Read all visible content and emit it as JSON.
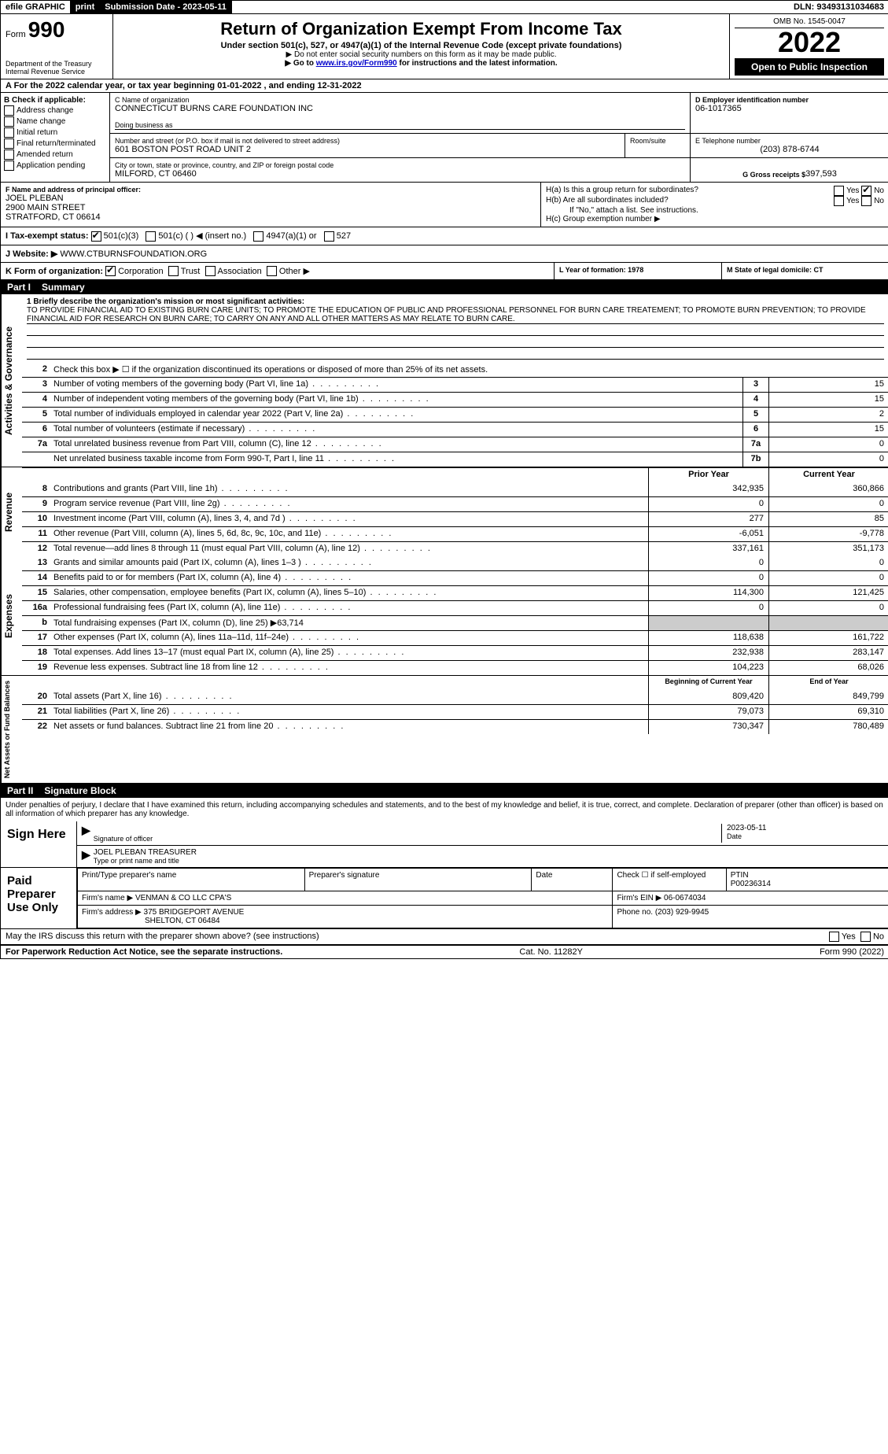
{
  "top_bar": {
    "efile_label": "efile GRAPHIC",
    "print_label": "print",
    "submission_label": "Submission Date - 2023-05-11",
    "dln_label": "DLN: 93493131034683"
  },
  "header": {
    "form_label": "Form",
    "form_number": "990",
    "dept1": "Department of the Treasury",
    "dept2": "Internal Revenue Service",
    "title": "Return of Organization Exempt From Income Tax",
    "subtitle": "Under section 501(c), 527, or 4947(a)(1) of the Internal Revenue Code (except private foundations)",
    "note1": "▶ Do not enter social security numbers on this form as it may be made public.",
    "note2_pre": "▶ Go to ",
    "note2_link": "www.irs.gov/Form990",
    "note2_post": " for instructions and the latest information.",
    "omb": "OMB No. 1545-0047",
    "year": "2022",
    "open_public": "Open to Public Inspection"
  },
  "row_a": {
    "text": "A For the 2022 calendar year, or tax year beginning 01-01-2022    , and ending 12-31-2022"
  },
  "col_b": {
    "heading": "B Check if applicable:",
    "items": [
      "Address change",
      "Name change",
      "Initial return",
      "Final return/terminated",
      "Amended return",
      "Application pending"
    ]
  },
  "block_c": {
    "label": "C Name of organization",
    "name": "CONNECTICUT BURNS CARE FOUNDATION INC",
    "dba_label": "Doing business as",
    "addr_label": "Number and street (or P.O. box if mail is not delivered to street address)",
    "room_label": "Room/suite",
    "addr": "601 BOSTON POST ROAD UNIT 2",
    "city_label": "City or town, state or province, country, and ZIP or foreign postal code",
    "city": "MILFORD, CT  06460"
  },
  "block_d": {
    "label": "D Employer identification number",
    "value": "06-1017365"
  },
  "block_e": {
    "label": "E Telephone number",
    "value": "(203) 878-6744"
  },
  "block_g": {
    "label": "G Gross receipts $",
    "value": "397,593"
  },
  "block_f": {
    "label": "F Name and address of principal officer:",
    "name": "JOEL PLEBAN",
    "addr1": "2900 MAIN STREET",
    "addr2": "STRATFORD, CT  06614"
  },
  "block_h": {
    "ha_label": "H(a)  Is this a group return for subordinates?",
    "hb_label": "H(b)  Are all subordinates included?",
    "hb_note": "If \"No,\" attach a list. See instructions.",
    "hc_label": "H(c)  Group exemption number ▶",
    "yes": "Yes",
    "no": "No"
  },
  "row_i": {
    "label": "I   Tax-exempt status:",
    "opts": [
      "501(c)(3)",
      "501(c) (   ) ◀ (insert no.)",
      "4947(a)(1) or",
      "527"
    ]
  },
  "row_j": {
    "label": "J   Website: ▶",
    "value": "WWW.CTBURNSFOUNDATION.ORG"
  },
  "row_k": {
    "label": "K Form of organization:",
    "opts": [
      "Corporation",
      "Trust",
      "Association",
      "Other ▶"
    ]
  },
  "row_l": {
    "label": "L Year of formation: 1978"
  },
  "row_m": {
    "label": "M State of legal domicile: CT"
  },
  "part1": {
    "label": "Part I",
    "title": "Summary"
  },
  "mission": {
    "line1_label": "1  Briefly describe the organization's mission or most significant activities:",
    "text": "TO PROVIDE FINANCIAL AID TO EXISTING BURN CARE UNITS; TO PROMOTE THE EDUCATION OF PUBLIC AND PROFESSIONAL PERSONNEL FOR BURN CARE TREATEMENT; TO PROMOTE BURN PREVENTION; TO PROVIDE FINANCIAL AID FOR RESEARCH ON BURN CARE; TO CARRY ON ANY AND ALL OTHER MATTERS AS MAY RELATE TO BURN CARE."
  },
  "governance": {
    "side": "Activities & Governance",
    "lines": [
      {
        "n": "2",
        "t": "Check this box ▶ ☐  if the organization discontinued its operations or disposed of more than 25% of its net assets."
      },
      {
        "n": "3",
        "t": "Number of voting members of the governing body (Part VI, line 1a)",
        "box": "3",
        "v": "15"
      },
      {
        "n": "4",
        "t": "Number of independent voting members of the governing body (Part VI, line 1b)",
        "box": "4",
        "v": "15"
      },
      {
        "n": "5",
        "t": "Total number of individuals employed in calendar year 2022 (Part V, line 2a)",
        "box": "5",
        "v": "2"
      },
      {
        "n": "6",
        "t": "Total number of volunteers (estimate if necessary)",
        "box": "6",
        "v": "15"
      },
      {
        "n": "7a",
        "t": "Total unrelated business revenue from Part VIII, column (C), line 12",
        "box": "7a",
        "v": "0"
      },
      {
        "n": "",
        "t": "Net unrelated business taxable income from Form 990-T, Part I, line 11",
        "box": "7b",
        "v": "0"
      }
    ]
  },
  "twocol_header": {
    "prior": "Prior Year",
    "current": "Current Year"
  },
  "revenue": {
    "side": "Revenue",
    "lines": [
      {
        "n": "8",
        "t": "Contributions and grants (Part VIII, line 1h)",
        "p": "342,935",
        "c": "360,866"
      },
      {
        "n": "9",
        "t": "Program service revenue (Part VIII, line 2g)",
        "p": "0",
        "c": "0"
      },
      {
        "n": "10",
        "t": "Investment income (Part VIII, column (A), lines 3, 4, and 7d )",
        "p": "277",
        "c": "85"
      },
      {
        "n": "11",
        "t": "Other revenue (Part VIII, column (A), lines 5, 6d, 8c, 9c, 10c, and 11e)",
        "p": "-6,051",
        "c": "-9,778"
      },
      {
        "n": "12",
        "t": "Total revenue—add lines 8 through 11 (must equal Part VIII, column (A), line 12)",
        "p": "337,161",
        "c": "351,173"
      }
    ]
  },
  "expenses": {
    "side": "Expenses",
    "lines": [
      {
        "n": "13",
        "t": "Grants and similar amounts paid (Part IX, column (A), lines 1–3 )",
        "p": "0",
        "c": "0"
      },
      {
        "n": "14",
        "t": "Benefits paid to or for members (Part IX, column (A), line 4)",
        "p": "0",
        "c": "0"
      },
      {
        "n": "15",
        "t": "Salaries, other compensation, employee benefits (Part IX, column (A), lines 5–10)",
        "p": "114,300",
        "c": "121,425"
      },
      {
        "n": "16a",
        "t": "Professional fundraising fees (Part IX, column (A), line 11e)",
        "p": "0",
        "c": "0"
      },
      {
        "n": "b",
        "t": "Total fundraising expenses (Part IX, column (D), line 25) ▶63,714",
        "p": "",
        "c": "",
        "shade": true
      },
      {
        "n": "17",
        "t": "Other expenses (Part IX, column (A), lines 11a–11d, 11f–24e)",
        "p": "118,638",
        "c": "161,722"
      },
      {
        "n": "18",
        "t": "Total expenses. Add lines 13–17 (must equal Part IX, column (A), line 25)",
        "p": "232,938",
        "c": "283,147"
      },
      {
        "n": "19",
        "t": "Revenue less expenses. Subtract line 18 from line 12",
        "p": "104,223",
        "c": "68,026"
      }
    ]
  },
  "netassets_header": {
    "begin": "Beginning of Current Year",
    "end": "End of Year"
  },
  "netassets": {
    "side": "Net Assets or Fund Balances",
    "lines": [
      {
        "n": "20",
        "t": "Total assets (Part X, line 16)",
        "p": "809,420",
        "c": "849,799"
      },
      {
        "n": "21",
        "t": "Total liabilities (Part X, line 26)",
        "p": "79,073",
        "c": "69,310"
      },
      {
        "n": "22",
        "t": "Net assets or fund balances. Subtract line 21 from line 20",
        "p": "730,347",
        "c": "780,489"
      }
    ]
  },
  "part2": {
    "label": "Part II",
    "title": "Signature Block",
    "declaration": "Under penalties of perjury, I declare that I have examined this return, including accompanying schedules and statements, and to the best of my knowledge and belief, it is true, correct, and complete. Declaration of preparer (other than officer) is based on all information of which preparer has any knowledge."
  },
  "sign": {
    "label": "Sign Here",
    "sig_label": "Signature of officer",
    "date_label": "Date",
    "date_value": "2023-05-11",
    "name": "JOEL PLEBAN  TREASURER",
    "name_label": "Type or print name and title"
  },
  "preparer": {
    "label": "Paid Preparer Use Only",
    "print_name_label": "Print/Type preparer's name",
    "sig_label": "Preparer's signature",
    "date_label": "Date",
    "check_label": "Check ☐ if self-employed",
    "ptin_label": "PTIN",
    "ptin": "P00236314",
    "firm_name_label": "Firm's name     ▶",
    "firm_name": "VENMAN & CO LLC CPA'S",
    "firm_ein_label": "Firm's EIN ▶",
    "firm_ein": "06-0674034",
    "firm_addr_label": "Firm's address ▶",
    "firm_addr1": "375 BRIDGEPORT AVENUE",
    "firm_addr2": "SHELTON, CT  06484",
    "phone_label": "Phone no.",
    "phone": "(203) 929-9945"
  },
  "discuss": {
    "text": "May the IRS discuss this return with the preparer shown above? (see instructions)",
    "yes": "Yes",
    "no": "No"
  },
  "footer": {
    "left": "For Paperwork Reduction Act Notice, see the separate instructions.",
    "mid": "Cat. No. 11282Y",
    "right": "Form 990 (2022)"
  }
}
